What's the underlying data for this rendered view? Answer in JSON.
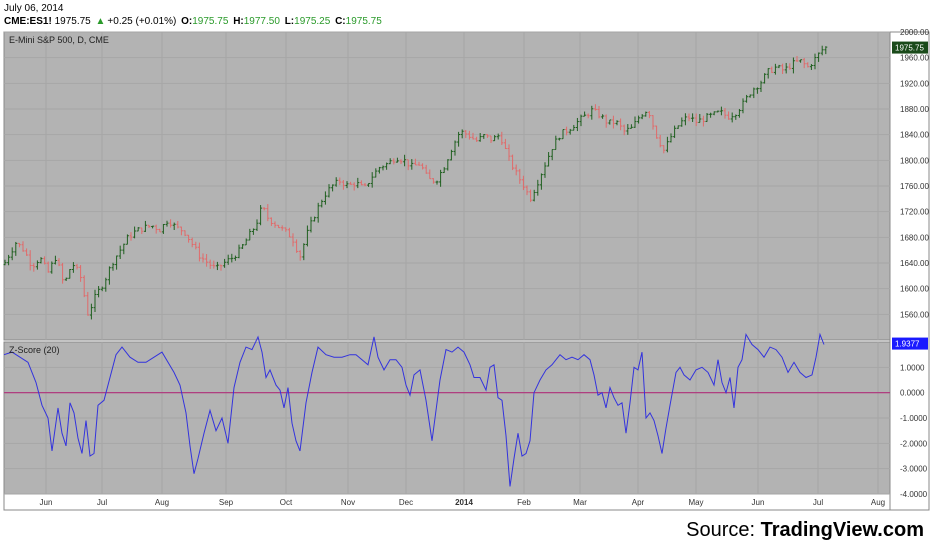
{
  "header": {
    "date": "July 06, 2014",
    "symbol": "CME:ES1!",
    "last": "1975.75",
    "change": "+0.25 (+0.01%)",
    "o_label": "O:",
    "o_value": "1975.75",
    "h_label": "H:",
    "h_value": "1977.50",
    "l_label": "L:",
    "l_value": "1975.25",
    "c_label": "C:",
    "c_value": "1975.75"
  },
  "source": {
    "prefix": "Source: ",
    "name": "TradingView.com"
  },
  "colors": {
    "plot_bg": "#b3b3b3",
    "grid": "#a6a6a6",
    "up_bar": "#1f5f1f",
    "down_bar": "#e06a6a",
    "zscore_line": "#3333dd",
    "zero_line": "#b0307a",
    "price_tag_bg": "#1a4a1a",
    "zscore_tag_bg": "#1a1aff"
  },
  "chart_data": [
    {
      "type": "ohlc",
      "title": "E-Mini S&P 500, D, CME",
      "x": [
        "Jun",
        "Jul",
        "Aug",
        "Sep",
        "Oct",
        "Nov",
        "Dec",
        "2014",
        "Feb",
        "Mar",
        "Apr",
        "May",
        "Jun",
        "Jul",
        "Aug"
      ],
      "ylim": [
        1520,
        2000
      ],
      "y_ticks": [
        "2000.00",
        "1960.00",
        "1920.00",
        "1880.00",
        "1840.00",
        "1800.00",
        "1760.00",
        "1720.00",
        "1680.00",
        "1640.00",
        "1600.00",
        "1560.00"
      ],
      "last_value_label": "1975.75",
      "close_points": [
        [
          0,
          1625
        ],
        [
          8,
          1650
        ],
        [
          16,
          1672
        ],
        [
          24,
          1660
        ],
        [
          32,
          1635
        ],
        [
          40,
          1648
        ],
        [
          48,
          1625
        ],
        [
          56,
          1650
        ],
        [
          64,
          1605
        ],
        [
          72,
          1640
        ],
        [
          80,
          1622
        ],
        [
          88,
          1560
        ],
        [
          96,
          1590
        ],
        [
          104,
          1610
        ],
        [
          112,
          1640
        ],
        [
          120,
          1660
        ],
        [
          128,
          1680
        ],
        [
          136,
          1690
        ],
        [
          144,
          1695
        ],
        [
          152,
          1698
        ],
        [
          160,
          1692
        ],
        [
          168,
          1708
        ],
        [
          176,
          1695
        ],
        [
          184,
          1690
        ],
        [
          192,
          1670
        ],
        [
          200,
          1650
        ],
        [
          208,
          1640
        ],
        [
          216,
          1630
        ],
        [
          224,
          1640
        ],
        [
          232,
          1648
        ],
        [
          240,
          1660
        ],
        [
          248,
          1680
        ],
        [
          256,
          1700
        ],
        [
          262,
          1728
        ],
        [
          268,
          1710
        ],
        [
          276,
          1700
        ],
        [
          284,
          1690
        ],
        [
          292,
          1680
        ],
        [
          300,
          1650
        ],
        [
          308,
          1690
        ],
        [
          316,
          1720
        ],
        [
          324,
          1745
        ],
        [
          332,
          1760
        ],
        [
          340,
          1768
        ],
        [
          348,
          1760
        ],
        [
          356,
          1765
        ],
        [
          364,
          1755
        ],
        [
          372,
          1775
        ],
        [
          380,
          1790
        ],
        [
          388,
          1795
        ],
        [
          396,
          1805
        ],
        [
          404,
          1800
        ],
        [
          412,
          1790
        ],
        [
          420,
          1795
        ],
        [
          428,
          1770
        ],
        [
          436,
          1768
        ],
        [
          444,
          1790
        ],
        [
          452,
          1820
        ],
        [
          460,
          1845
        ],
        [
          468,
          1840
        ],
        [
          476,
          1830
        ],
        [
          484,
          1838
        ],
        [
          492,
          1832
        ],
        [
          500,
          1840
        ],
        [
          508,
          1805
        ],
        [
          516,
          1780
        ],
        [
          524,
          1760
        ],
        [
          530,
          1740
        ],
        [
          536,
          1760
        ],
        [
          544,
          1790
        ],
        [
          552,
          1820
        ],
        [
          560,
          1840
        ],
        [
          568,
          1848
        ],
        [
          576,
          1858
        ],
        [
          584,
          1868
        ],
        [
          592,
          1878
        ],
        [
          600,
          1870
        ],
        [
          608,
          1858
        ],
        [
          616,
          1860
        ],
        [
          624,
          1845
        ],
        [
          632,
          1850
        ],
        [
          640,
          1870
        ],
        [
          648,
          1880
        ],
        [
          656,
          1840
        ],
        [
          664,
          1815
        ],
        [
          672,
          1840
        ],
        [
          680,
          1858
        ],
        [
          688,
          1868
        ],
        [
          696,
          1860
        ],
        [
          704,
          1865
        ],
        [
          712,
          1870
        ],
        [
          720,
          1875
        ],
        [
          728,
          1868
        ],
        [
          736,
          1875
        ],
        [
          744,
          1890
        ],
        [
          752,
          1910
        ],
        [
          760,
          1920
        ],
        [
          768,
          1938
        ],
        [
          776,
          1945
        ],
        [
          784,
          1940
        ],
        [
          792,
          1950
        ],
        [
          800,
          1955
        ],
        [
          808,
          1945
        ],
        [
          816,
          1960
        ],
        [
          824,
          1975.75
        ]
      ]
    },
    {
      "type": "line",
      "title": "Z-Score (20)",
      "ylim": [
        -4,
        2
      ],
      "y_ticks": [
        "1.0000",
        "0.0000",
        "-1.0000",
        "-2.0000",
        "-3.0000",
        "-4.0000"
      ],
      "last_value_label": "1.9377",
      "reference_line": 0,
      "points": [
        [
          4,
          1.5
        ],
        [
          12,
          1.6
        ],
        [
          20,
          1.4
        ],
        [
          28,
          1.2
        ],
        [
          36,
          0.4
        ],
        [
          42,
          -0.5
        ],
        [
          48,
          -1.0
        ],
        [
          52,
          -2.3
        ],
        [
          58,
          -0.6
        ],
        [
          62,
          -1.6
        ],
        [
          66,
          -2.1
        ],
        [
          70,
          -0.4
        ],
        [
          74,
          -0.8
        ],
        [
          78,
          -1.8
        ],
        [
          82,
          -2.4
        ],
        [
          86,
          -1.1
        ],
        [
          90,
          -2.5
        ],
        [
          94,
          -2.4
        ],
        [
          98,
          -0.5
        ],
        [
          104,
          -0.3
        ],
        [
          110,
          0.6
        ],
        [
          116,
          1.5
        ],
        [
          122,
          1.8
        ],
        [
          130,
          1.4
        ],
        [
          138,
          1.2
        ],
        [
          146,
          1.2
        ],
        [
          154,
          1.4
        ],
        [
          162,
          1.6
        ],
        [
          168,
          1.2
        ],
        [
          174,
          0.8
        ],
        [
          180,
          0.3
        ],
        [
          186,
          -0.8
        ],
        [
          190,
          -2.1
        ],
        [
          194,
          -3.2
        ],
        [
          198,
          -2.6
        ],
        [
          204,
          -1.6
        ],
        [
          210,
          -0.7
        ],
        [
          216,
          -1.5
        ],
        [
          222,
          -1.0
        ],
        [
          228,
          -2.0
        ],
        [
          234,
          0.2
        ],
        [
          240,
          1.2
        ],
        [
          246,
          1.8
        ],
        [
          252,
          1.7
        ],
        [
          258,
          2.2
        ],
        [
          262,
          1.6
        ],
        [
          266,
          0.6
        ],
        [
          270,
          0.9
        ],
        [
          276,
          0.3
        ],
        [
          280,
          0.1
        ],
        [
          284,
          -0.6
        ],
        [
          288,
          0.2
        ],
        [
          292,
          -1.2
        ],
        [
          296,
          -1.9
        ],
        [
          300,
          -2.3
        ],
        [
          306,
          -0.4
        ],
        [
          312,
          0.8
        ],
        [
          318,
          1.8
        ],
        [
          326,
          1.5
        ],
        [
          334,
          1.4
        ],
        [
          342,
          1.4
        ],
        [
          350,
          1.5
        ],
        [
          356,
          1.5
        ],
        [
          362,
          1.3
        ],
        [
          368,
          1.1
        ],
        [
          374,
          2.2
        ],
        [
          378,
          1.4
        ],
        [
          384,
          0.9
        ],
        [
          390,
          1.3
        ],
        [
          396,
          1.3
        ],
        [
          402,
          1.0
        ],
        [
          406,
          0.3
        ],
        [
          410,
          -0.1
        ],
        [
          414,
          0.7
        ],
        [
          420,
          0.9
        ],
        [
          426,
          -0.3
        ],
        [
          432,
          -1.9
        ],
        [
          436,
          -0.7
        ],
        [
          440,
          0.5
        ],
        [
          446,
          1.7
        ],
        [
          452,
          1.6
        ],
        [
          458,
          1.8
        ],
        [
          464,
          1.6
        ],
        [
          470,
          1.1
        ],
        [
          474,
          0.6
        ],
        [
          480,
          0.6
        ],
        [
          486,
          0.1
        ],
        [
          490,
          1.0
        ],
        [
          494,
          1.1
        ],
        [
          498,
          -0.2
        ],
        [
          502,
          -0.3
        ],
        [
          506,
          -1.7
        ],
        [
          510,
          -3.7
        ],
        [
          514,
          -2.6
        ],
        [
          518,
          -1.6
        ],
        [
          522,
          -2.5
        ],
        [
          526,
          -2.4
        ],
        [
          530,
          -1.9
        ],
        [
          534,
          0.0
        ],
        [
          540,
          0.5
        ],
        [
          546,
          0.9
        ],
        [
          552,
          1.1
        ],
        [
          556,
          1.3
        ],
        [
          560,
          1.5
        ],
        [
          566,
          1.3
        ],
        [
          572,
          1.4
        ],
        [
          578,
          1.3
        ],
        [
          584,
          1.5
        ],
        [
          590,
          1.3
        ],
        [
          594,
          0.7
        ],
        [
          598,
          -0.1
        ],
        [
          602,
          0.0
        ],
        [
          606,
          -0.6
        ],
        [
          610,
          0.2
        ],
        [
          614,
          -0.2
        ],
        [
          618,
          -0.5
        ],
        [
          622,
          -0.4
        ],
        [
          626,
          -1.6
        ],
        [
          630,
          -0.4
        ],
        [
          634,
          1.0
        ],
        [
          638,
          0.9
        ],
        [
          642,
          1.6
        ],
        [
          646,
          -1.0
        ],
        [
          650,
          -0.8
        ],
        [
          654,
          -1.1
        ],
        [
          658,
          -1.7
        ],
        [
          662,
          -2.4
        ],
        [
          666,
          -1.4
        ],
        [
          670,
          -0.5
        ],
        [
          676,
          0.8
        ],
        [
          680,
          1.0
        ],
        [
          684,
          0.7
        ],
        [
          690,
          0.5
        ],
        [
          696,
          0.9
        ],
        [
          702,
          1.0
        ],
        [
          708,
          0.8
        ],
        [
          714,
          0.3
        ],
        [
          718,
          1.3
        ],
        [
          722,
          0.4
        ],
        [
          726,
          0.0
        ],
        [
          730,
          0.6
        ],
        [
          734,
          -0.6
        ],
        [
          738,
          1.0
        ],
        [
          742,
          1.3
        ],
        [
          746,
          2.3
        ],
        [
          752,
          1.9
        ],
        [
          758,
          1.7
        ],
        [
          764,
          1.4
        ],
        [
          770,
          1.8
        ],
        [
          776,
          1.7
        ],
        [
          782,
          1.4
        ],
        [
          788,
          0.8
        ],
        [
          794,
          1.2
        ],
        [
          800,
          0.8
        ],
        [
          806,
          0.6
        ],
        [
          812,
          0.7
        ],
        [
          816,
          1.4
        ],
        [
          820,
          2.3
        ],
        [
          824,
          1.9
        ]
      ]
    }
  ]
}
